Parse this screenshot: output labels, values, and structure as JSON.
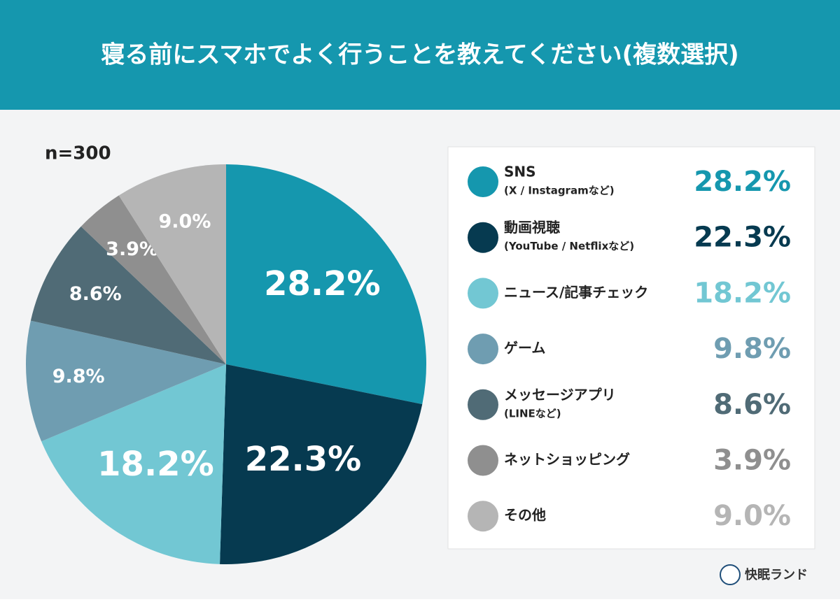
{
  "chart_data": {
    "type": "pie",
    "title": "寝る前にスマホでよく行うことを教えてください(複数選択)",
    "note": "n=300",
    "brand": "快眠ランド",
    "categories": [
      [
        "SNS",
        "(X / Instagramなど)"
      ],
      [
        "動画視聴",
        "(YouTube / Netflixなど)"
      ],
      [
        "ニュース/記事チェック"
      ],
      [
        "ゲーム"
      ],
      [
        "メッセージアプリ",
        "(LINEなど)"
      ],
      [
        "ネットショッピング"
      ],
      [
        "その他"
      ]
    ],
    "values": [
      28.2,
      22.3,
      18.2,
      9.8,
      8.6,
      3.9,
      9.0
    ],
    "value_labels": [
      "28.2%",
      "22.3%",
      "18.2%",
      "9.8%",
      "8.6%",
      "3.9%",
      "9.0%"
    ],
    "colors": [
      "#1597ae",
      "#063a50",
      "#72c7d3",
      "#6f9db1",
      "#506b76",
      "#8f8f8f",
      "#b5b5b5"
    ]
  }
}
